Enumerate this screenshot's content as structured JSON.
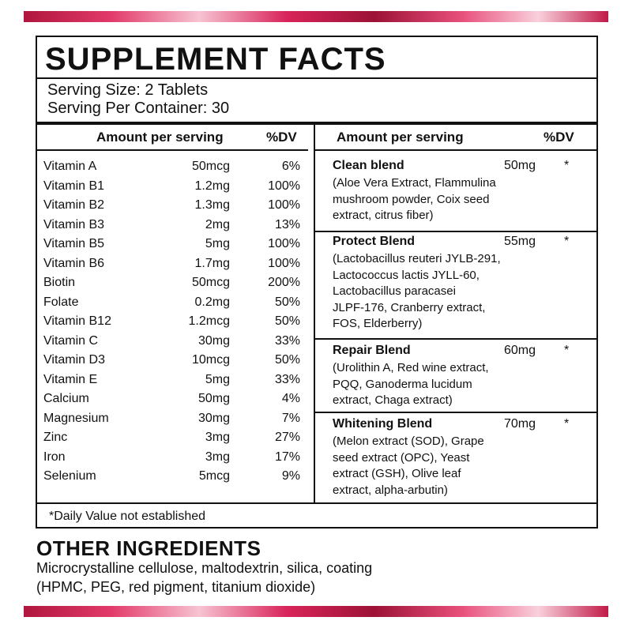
{
  "header": {
    "title": "SUPPLEMENT FACTS"
  },
  "serving": {
    "size": "Serving Size: 2 Tablets",
    "per_container": "Serving Per Container: 30"
  },
  "left": {
    "headers": [
      "Amount per serving",
      "%DV"
    ],
    "rows": [
      [
        "Vitamin A",
        "50mcg",
        "6%"
      ],
      [
        "Vitamin B1",
        "1.2mg",
        "100%"
      ],
      [
        "Vitamin B2",
        "1.3mg",
        "100%"
      ],
      [
        "Vitamin B3",
        "2mg",
        "13%"
      ],
      [
        "Vitamin B5",
        "5mg",
        "100%"
      ],
      [
        "Vitamin B6",
        "1.7mg",
        "100%"
      ],
      [
        "Biotin",
        "50mcg",
        "200%"
      ],
      [
        "Folate",
        "0.2mg",
        "50%"
      ],
      [
        "Vitamin B12",
        "1.2mcg",
        "50%"
      ],
      [
        "Vitamin C",
        "30mg",
        "33%"
      ],
      [
        "Vitamin D3",
        "10mcg",
        "50%"
      ],
      [
        "Vitamin E",
        "5mg",
        "33%"
      ],
      [
        "Calcium",
        "50mg",
        "4%"
      ],
      [
        "Magnesium",
        "30mg",
        "7%"
      ],
      [
        "Zinc",
        "3mg",
        "27%"
      ],
      [
        "Iron",
        "3mg",
        "17%"
      ],
      [
        "Selenium",
        "5mcg",
        "9%"
      ]
    ]
  },
  "right": {
    "headers": [
      "Amount per serving",
      "%DV"
    ],
    "blends": [
      {
        "name": "Clean blend",
        "amount": "50mg",
        "dv": "*",
        "description": [
          "(Aloe Vera Extract, Flammulina",
          "mushroom powder, Coix seed",
          "extract, citrus fiber)"
        ]
      },
      {
        "name": "Protect Blend",
        "amount": "55mg",
        "dv": "*",
        "description": [
          "(Lactobacillus reuteri JYLB-291,",
          "Lactococcus lactis JYLL-60,",
          "Lactobacillus paracasei",
          "JLPF-176, Cranberry extract,",
          "FOS, Elderberry)"
        ]
      },
      {
        "name": "Repair Blend",
        "amount": "60mg",
        "dv": "*",
        "description": [
          "(Urolithin A, Red wine extract,",
          "PQQ, Ganoderma lucidum",
          "extract, Chaga extract)"
        ]
      },
      {
        "name": "Whitening Blend",
        "amount": "70mg",
        "dv": "*",
        "description": [
          "(Melon extract (SOD), Grape",
          "seed extract (OPC), Yeast",
          "extract (GSH), Olive leaf",
          "extract, alpha-arbutin)"
        ]
      }
    ]
  },
  "footnote": "*Daily Value not established",
  "other": {
    "title": "OTHER INGREDIENTS",
    "lines": [
      "Microcrystalline cellulose, maltodextrin, silica, coating",
      "(HPMC, PEG, red pigment, titanium dioxide)"
    ]
  }
}
